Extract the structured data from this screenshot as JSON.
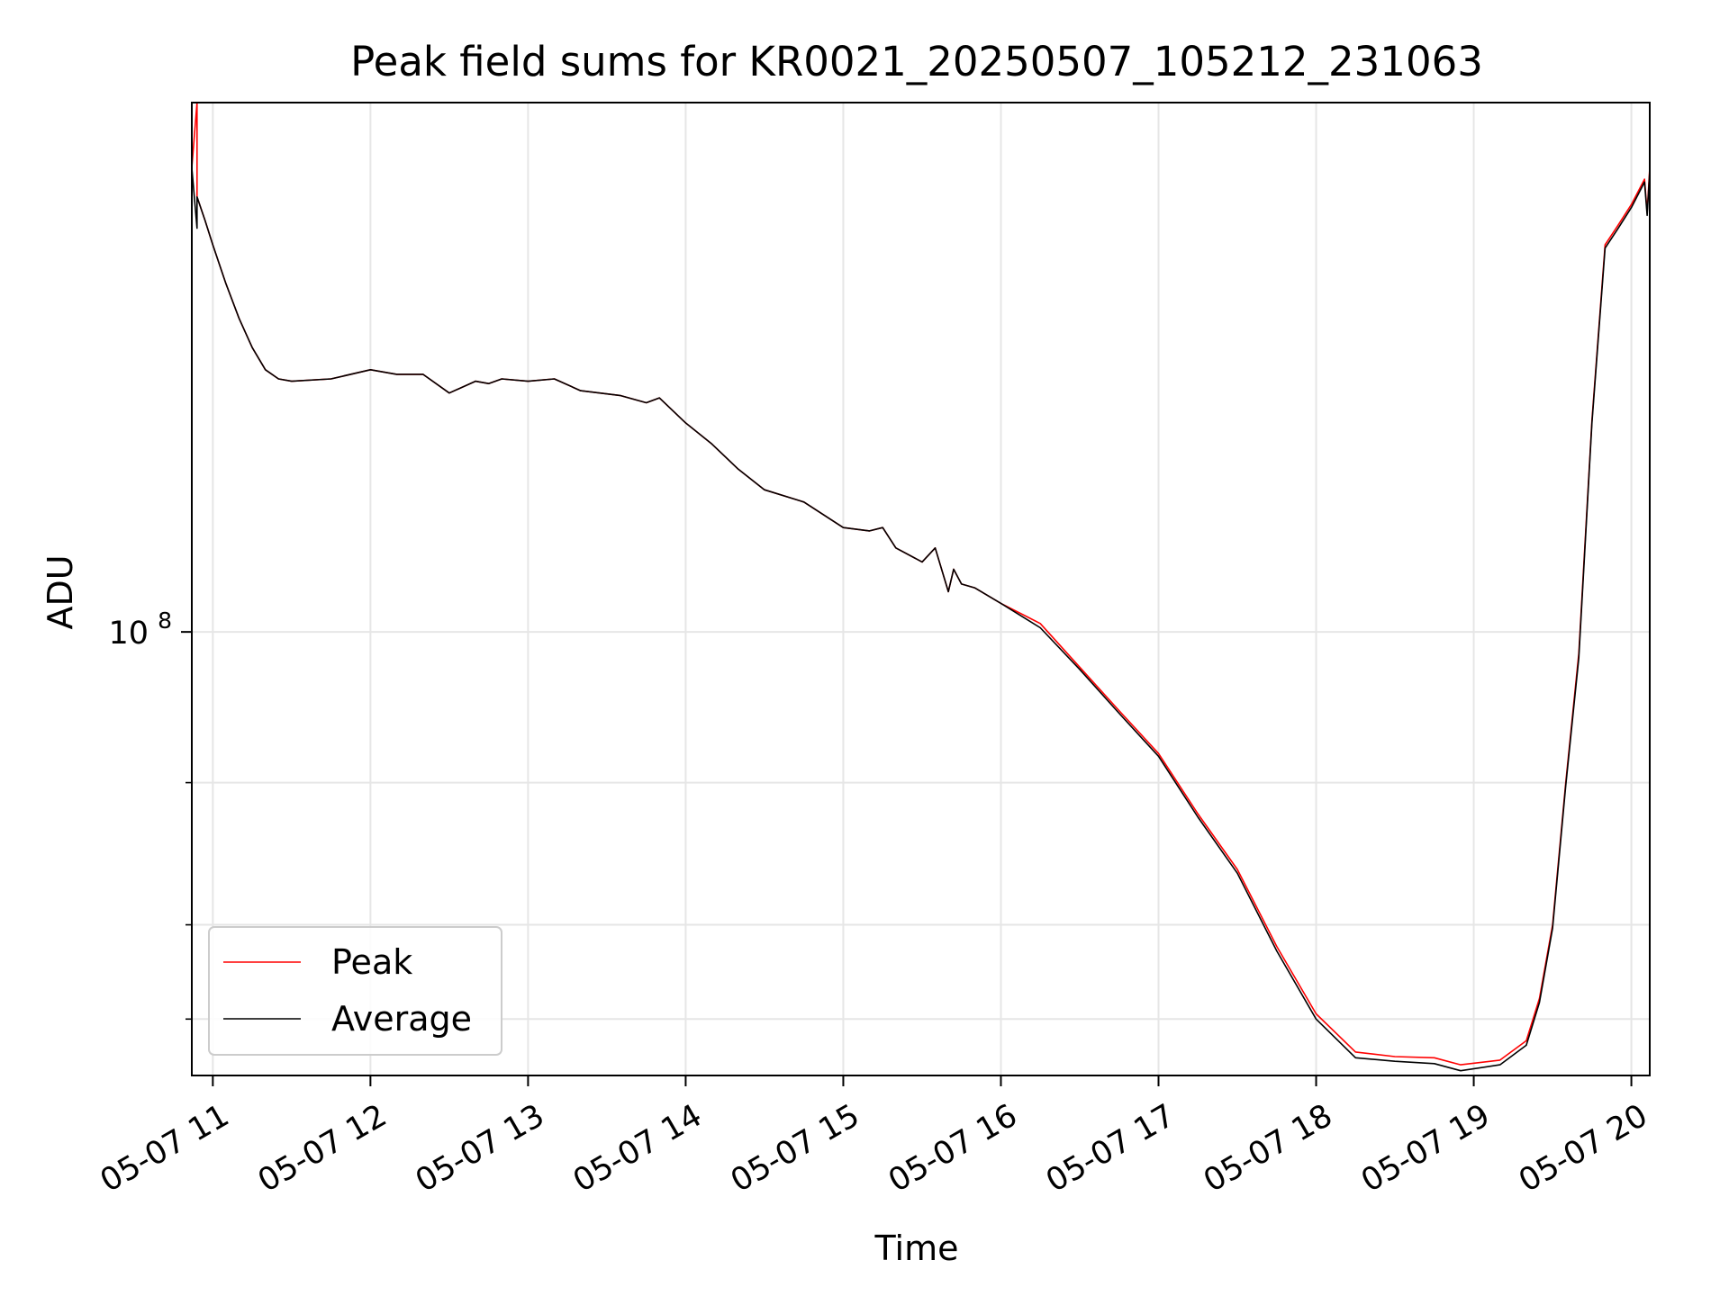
{
  "chart_data": {
    "type": "line",
    "title": "Peak field sums for KR0021_20250507_105212_231063",
    "xlabel": "Time",
    "ylabel": "ADU",
    "x_scale": "time",
    "y_scale": "log",
    "x_ticks": [
      "05-07 11",
      "05-07 12",
      "05-07 13",
      "05-07 14",
      "05-07 15",
      "05-07 16",
      "05-07 17",
      "05-07 18",
      "05-07 19",
      "05-07 20"
    ],
    "y_ticks": [
      {
        "value": 100000000,
        "label": "10^8"
      }
    ],
    "y_minor_ticks": [
      70000000,
      50000000,
      40000000
    ],
    "xlim": [
      "2025-05-07 10:52",
      "2025-05-07 20:07"
    ],
    "ylim": [
      35000000,
      350000000
    ],
    "grid": true,
    "legend_position": "lower-left",
    "series": [
      {
        "name": "Peak",
        "color": "#ff0000",
        "x": [
          "2025-05-07 10:52",
          "2025-05-07 10:54",
          "2025-05-07 10:54",
          "2025-05-07 10:57",
          "2025-05-07 11:00",
          "2025-05-07 11:05",
          "2025-05-07 11:10",
          "2025-05-07 11:15",
          "2025-05-07 11:20",
          "2025-05-07 11:25",
          "2025-05-07 11:30",
          "2025-05-07 11:45",
          "2025-05-07 12:00",
          "2025-05-07 12:10",
          "2025-05-07 12:20",
          "2025-05-07 12:30",
          "2025-05-07 12:40",
          "2025-05-07 12:45",
          "2025-05-07 12:50",
          "2025-05-07 13:00",
          "2025-05-07 13:10",
          "2025-05-07 13:20",
          "2025-05-07 13:35",
          "2025-05-07 13:45",
          "2025-05-07 13:50",
          "2025-05-07 14:00",
          "2025-05-07 14:10",
          "2025-05-07 14:20",
          "2025-05-07 14:30",
          "2025-05-07 14:45",
          "2025-05-07 15:00",
          "2025-05-07 15:10",
          "2025-05-07 15:15",
          "2025-05-07 15:20",
          "2025-05-07 15:30",
          "2025-05-07 15:35",
          "2025-05-07 15:40",
          "2025-05-07 15:42",
          "2025-05-07 15:45",
          "2025-05-07 15:50",
          "2025-05-07 16:00",
          "2025-05-07 16:15",
          "2025-05-07 16:30",
          "2025-05-07 16:45",
          "2025-05-07 17:00",
          "2025-05-07 17:15",
          "2025-05-07 17:30",
          "2025-05-07 17:45",
          "2025-05-07 18:00",
          "2025-05-07 18:15",
          "2025-05-07 18:30",
          "2025-05-07 18:45",
          "2025-05-07 18:55",
          "2025-05-07 19:10",
          "2025-05-07 19:20",
          "2025-05-07 19:25",
          "2025-05-07 19:30",
          "2025-05-07 19:35",
          "2025-05-07 19:40",
          "2025-05-07 19:45",
          "2025-05-07 19:50",
          "2025-05-07 19:55",
          "2025-05-07 20:00",
          "2025-05-07 20:05",
          "2025-05-07 20:06",
          "2025-05-07 20:07"
        ],
        "y": [
          300000000,
          350000000,
          280000000,
          265000000,
          250000000,
          228000000,
          210000000,
          196000000,
          186000000,
          182000000,
          181000000,
          182000000,
          186000000,
          184000000,
          184000000,
          176000000,
          181000000,
          180000000,
          182000000,
          181000000,
          182000000,
          177000000,
          175000000,
          172000000,
          174000000,
          164000000,
          156000000,
          147000000,
          140000000,
          136000000,
          128000000,
          127000000,
          128000000,
          122000000,
          118000000,
          122000000,
          110000000,
          116000000,
          112000000,
          111000000,
          107000000,
          102000000,
          92000000,
          83000000,
          75000000,
          65000000,
          57000000,
          47500000,
          40500000,
          37000000,
          36600000,
          36500000,
          35900000,
          36300000,
          38000000,
          42000000,
          50000000,
          70000000,
          95000000,
          165000000,
          250000000,
          262000000,
          275000000,
          292000000,
          270000000,
          300000000
        ]
      },
      {
        "name": "Average",
        "color": "#000000",
        "x": [
          "2025-05-07 10:52",
          "2025-05-07 10:54",
          "2025-05-07 10:54",
          "2025-05-07 10:57",
          "2025-05-07 11:00",
          "2025-05-07 11:05",
          "2025-05-07 11:10",
          "2025-05-07 11:15",
          "2025-05-07 11:20",
          "2025-05-07 11:25",
          "2025-05-07 11:30",
          "2025-05-07 11:45",
          "2025-05-07 12:00",
          "2025-05-07 12:10",
          "2025-05-07 12:20",
          "2025-05-07 12:30",
          "2025-05-07 12:40",
          "2025-05-07 12:45",
          "2025-05-07 12:50",
          "2025-05-07 13:00",
          "2025-05-07 13:10",
          "2025-05-07 13:20",
          "2025-05-07 13:35",
          "2025-05-07 13:45",
          "2025-05-07 13:50",
          "2025-05-07 14:00",
          "2025-05-07 14:10",
          "2025-05-07 14:20",
          "2025-05-07 14:30",
          "2025-05-07 14:45",
          "2025-05-07 15:00",
          "2025-05-07 15:10",
          "2025-05-07 15:15",
          "2025-05-07 15:20",
          "2025-05-07 15:30",
          "2025-05-07 15:35",
          "2025-05-07 15:40",
          "2025-05-07 15:42",
          "2025-05-07 15:45",
          "2025-05-07 15:50",
          "2025-05-07 16:00",
          "2025-05-07 16:15",
          "2025-05-07 16:30",
          "2025-05-07 16:45",
          "2025-05-07 17:00",
          "2025-05-07 17:15",
          "2025-05-07 17:30",
          "2025-05-07 17:45",
          "2025-05-07 18:00",
          "2025-05-07 18:15",
          "2025-05-07 18:30",
          "2025-05-07 18:45",
          "2025-05-07 18:55",
          "2025-05-07 19:10",
          "2025-05-07 19:20",
          "2025-05-07 19:25",
          "2025-05-07 19:30",
          "2025-05-07 19:35",
          "2025-05-07 19:40",
          "2025-05-07 19:45",
          "2025-05-07 19:50",
          "2025-05-07 19:55",
          "2025-05-07 20:00",
          "2025-05-07 20:05",
          "2025-05-07 20:06",
          "2025-05-07 20:07"
        ],
        "y": [
          300000000,
          260000000,
          280000000,
          265000000,
          250000000,
          228000000,
          210000000,
          196000000,
          186000000,
          182000000,
          181000000,
          182000000,
          186000000,
          184000000,
          184000000,
          176000000,
          181000000,
          180000000,
          182000000,
          181000000,
          182000000,
          177000000,
          175000000,
          172000000,
          174000000,
          164000000,
          156000000,
          147000000,
          140000000,
          136000000,
          128000000,
          127000000,
          128000000,
          122000000,
          118000000,
          122000000,
          110000000,
          116000000,
          112000000,
          111000000,
          107000000,
          101000000,
          91500000,
          82500000,
          74500000,
          64500000,
          56500000,
          47000000,
          40000000,
          36500000,
          36200000,
          36000000,
          35400000,
          35900000,
          37600000,
          41600000,
          49600000,
          69500000,
          94000000,
          164000000,
          248000000,
          260000000,
          273000000,
          290000000,
          268000000,
          298000000
        ]
      }
    ]
  }
}
